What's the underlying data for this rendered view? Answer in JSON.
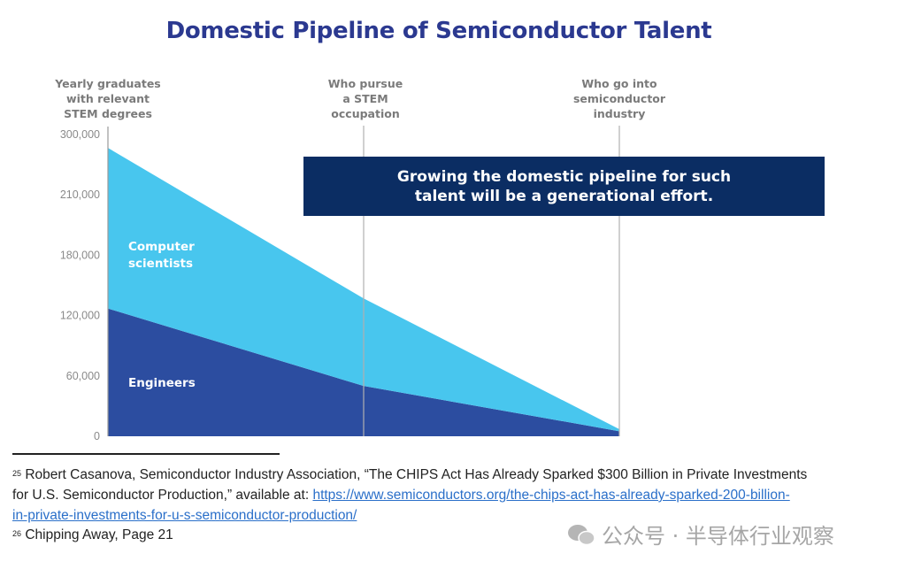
{
  "chart_data": {
    "type": "area",
    "stacked": true,
    "title": "Domestic Pipeline of Semiconductor Talent",
    "categories": [
      "Yearly graduates with relevant STEM degrees",
      "Who pursue a STEM occupation",
      "Who go into semiconductor industry"
    ],
    "category_lines": [
      [
        "Yearly graduates",
        "with relevant",
        "STEM degrees"
      ],
      [
        "Who pursue",
        "a STEM",
        "occupation"
      ],
      [
        "Who go into",
        "semiconductor",
        "industry"
      ]
    ],
    "y_ticks": [
      0,
      60000,
      120000,
      180000,
      210000,
      300000
    ],
    "y_tick_labels": [
      "0",
      "60,000",
      "120,000",
      "180,000",
      "210,000",
      "300,000"
    ],
    "ylim": [
      0,
      300000
    ],
    "series": [
      {
        "name": "Engineers",
        "label_lines": [
          "Engineers"
        ],
        "values": [
          127000,
          50000,
          5000
        ],
        "color": "#2c4da0"
      },
      {
        "name": "Computer scientists",
        "label_lines": [
          "Computer",
          "scientists"
        ],
        "values": [
          153000,
          87000,
          2000
        ],
        "color": "#48c6ee"
      }
    ],
    "annotation": [
      "Growing the domestic pipeline for such",
      "talent will be a generational effort."
    ]
  },
  "footnotes": {
    "fn25_num": "25",
    "fn25_text1": "Robert Casanova, Semiconductor Industry Association, “The CHIPS Act Has Already Sparked $300 Billion in Private Investments",
    "fn25_text2": "for U.S. Semiconductor Production,” available at: ",
    "fn25_link1": "https://www.semiconductors.org/the-chips-act-has-already-sparked-200-billion-",
    "fn25_link2": "in-private-investments-for-u-s-semiconductor-production/",
    "fn26_num": "26",
    "fn26_text": "Chipping Away, Page 21"
  },
  "watermark": "公众号 · 半导体行业观察"
}
